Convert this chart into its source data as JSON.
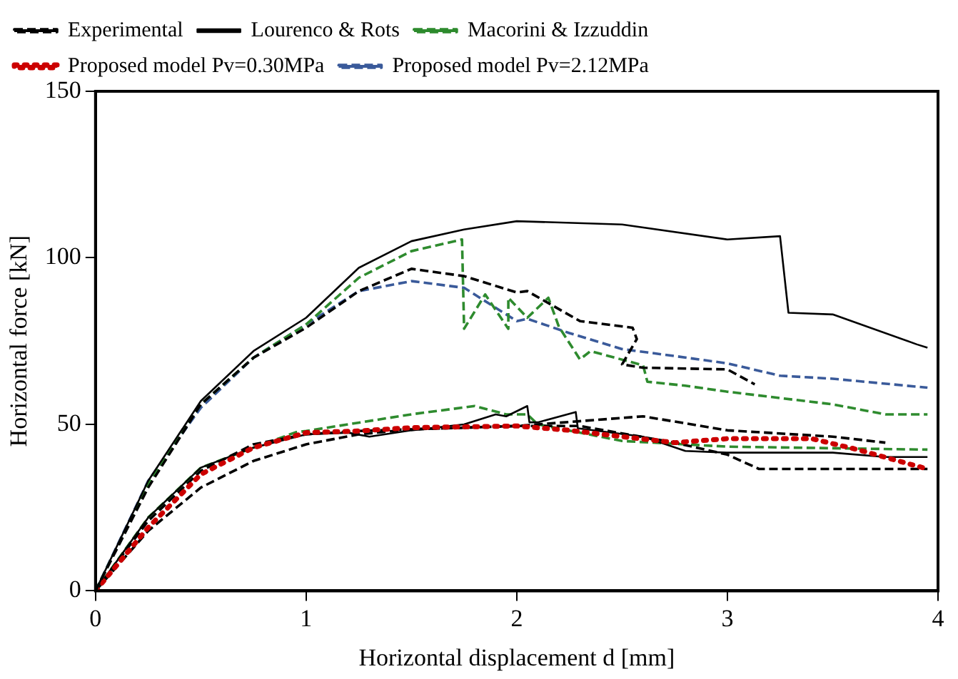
{
  "chart_data": {
    "type": "line",
    "xlabel": "Horizontal displacement d [mm]",
    "ylabel": "Horizontal force [kN]",
    "xlim": [
      0,
      4
    ],
    "xticks": [
      0,
      1,
      2,
      3,
      4
    ],
    "ylim": [
      0,
      150
    ],
    "yticks": [
      0,
      50,
      100,
      150
    ],
    "grid": false,
    "legend": "top left",
    "marker": "none",
    "series": [
      {
        "name": "Experimental",
        "color": "#000000",
        "line_style": "dashed",
        "x": [
          0,
          0.25,
          0.5,
          0.75,
          1.0,
          1.25,
          1.5,
          1.75,
          2.0,
          2.05,
          2.3,
          2.55,
          2.57,
          2.5,
          2.6,
          3.0,
          3.13
        ],
        "values": [
          0,
          31,
          56,
          70,
          79,
          90,
          96.7,
          94.5,
          89.6,
          90,
          81,
          79,
          75.6,
          68,
          67,
          66.5,
          62
        ]
      },
      {
        "name": "Lourenco & Rots",
        "color": "#000000",
        "line_style": "solid",
        "x": [
          0,
          0.25,
          0.5,
          0.75,
          1.0,
          1.25,
          1.5,
          1.75,
          2.0,
          2.5,
          3.0,
          3.25,
          3.29,
          3.5,
          3.9,
          3.95
        ],
        "values": [
          0,
          33,
          57,
          72,
          82,
          97,
          105,
          108.5,
          111,
          110,
          105.5,
          106.5,
          83.5,
          83,
          74,
          73
        ]
      },
      {
        "name": "Macorini & Izzuddin",
        "color": "#2e8b2e",
        "line_style": "dashed",
        "x": [
          0,
          0.25,
          0.5,
          0.75,
          1.0,
          1.25,
          1.5,
          1.74,
          1.75,
          1.85,
          1.96,
          1.96,
          2.05,
          2.15,
          2.2,
          2.3,
          2.35,
          2.6,
          2.62,
          2.8,
          3.0,
          3.5,
          3.75,
          3.95
        ],
        "values": [
          0,
          32,
          56,
          70,
          80,
          94,
          102,
          105.5,
          78.7,
          89,
          78.7,
          88,
          82,
          88,
          79.3,
          69.5,
          72,
          67.7,
          62.8,
          61.6,
          59.8,
          56,
          53,
          53
        ]
      },
      {
        "name": "Proposed model Pv=0.30MPa",
        "color": "#cc0000",
        "line_style": "dotted",
        "x": [
          0,
          0.25,
          0.5,
          0.75,
          1.0,
          1.25,
          1.5,
          2.0,
          2.25,
          2.5,
          2.75,
          3.0,
          3.4,
          3.6,
          3.95
        ],
        "values": [
          0,
          19,
          35,
          43,
          47.5,
          48,
          49,
          49.5,
          48.2,
          46.3,
          44.5,
          45.7,
          45.7,
          42.7,
          36.6
        ]
      },
      {
        "name": "Proposed model Pv=2.12MPa",
        "color": "#3a5a9a",
        "line_style": "dashed",
        "x": [
          0,
          0.25,
          0.5,
          0.75,
          1.0,
          1.25,
          1.5,
          1.75,
          2.0,
          2.05,
          2.25,
          2.5,
          2.75,
          3.0,
          3.25,
          3.5,
          3.95
        ],
        "values": [
          0,
          33,
          55,
          70,
          80,
          90,
          93,
          91,
          81,
          81.7,
          77.4,
          72.6,
          70.5,
          68.3,
          64.6,
          63.7,
          61
        ]
      },
      {
        "color": "#000000",
        "line_style": "dashed",
        "x": [
          0,
          0.25,
          0.5,
          0.75,
          1.0,
          1.25,
          2.0,
          2.6,
          3.0,
          3.5,
          3.75
        ],
        "values": [
          0,
          21,
          36,
          44,
          47,
          48,
          49.5,
          52.4,
          48.2,
          46.3,
          44.5
        ]
      },
      {
        "color": "#000000",
        "line_style": "dashed",
        "x": [
          0,
          0.25,
          0.5,
          0.75,
          1.0,
          1.25,
          1.5,
          2.0,
          2.3,
          2.75,
          3.0,
          3.15,
          3.95
        ],
        "values": [
          0,
          18,
          31,
          39,
          44,
          47,
          48.5,
          49.5,
          49.5,
          44.5,
          40.9,
          36.6,
          36.6
        ]
      },
      {
        "color": "#000000",
        "line_style": "solid",
        "x": [
          0,
          0.25,
          0.5,
          0.75,
          1.0,
          1.2,
          1.3,
          1.5,
          1.75,
          1.9,
          1.95,
          2.05,
          2.06,
          2.1,
          2.28,
          2.29,
          2.6,
          2.8,
          3.0,
          3.5,
          3.75,
          3.95
        ],
        "values": [
          0,
          22,
          37,
          43,
          47,
          47.5,
          46.3,
          48.2,
          50,
          53,
          52.4,
          55.5,
          50.6,
          50.6,
          53.7,
          48.8,
          46.3,
          42,
          41.5,
          41.5,
          40.2,
          40.2
        ]
      },
      {
        "color": "#2e8b2e",
        "line_style": "dashed",
        "x": [
          0,
          0.25,
          0.5,
          0.75,
          0.95,
          1.0,
          1.5,
          1.8,
          1.95,
          2.05,
          2.1,
          2.5,
          3.0,
          3.95
        ],
        "values": [
          0,
          22,
          37,
          43,
          47.6,
          48,
          53,
          55.5,
          53,
          53,
          50,
          45,
          43.3,
          42.4
        ]
      }
    ]
  }
}
